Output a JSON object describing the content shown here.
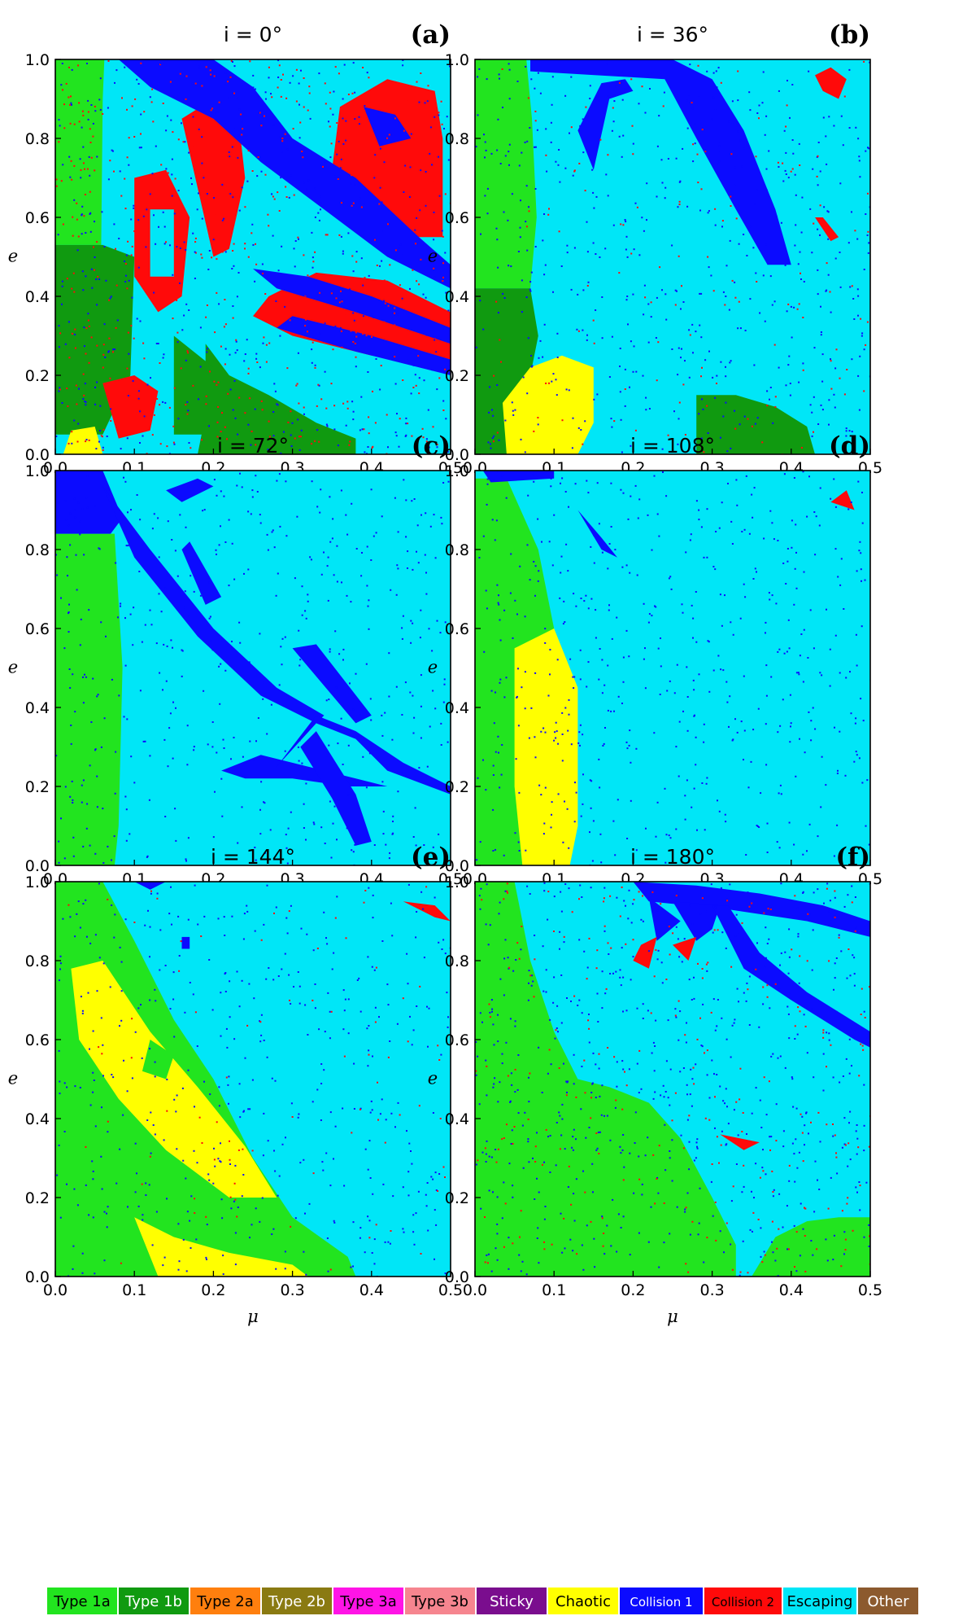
{
  "chart_data": {
    "type": "heatmap",
    "panels": [
      {
        "tag": "(a)",
        "title": "i = 0°",
        "xlabel": "μ",
        "ylabel": "e",
        "xlim": [
          0,
          0.5
        ],
        "ylim": [
          0,
          1
        ]
      },
      {
        "tag": "(b)",
        "title": "i = 36°",
        "xlabel": "μ",
        "ylabel": "e",
        "xlim": [
          0,
          0.5
        ],
        "ylim": [
          0,
          1
        ]
      },
      {
        "tag": "(c)",
        "title": "i = 72°",
        "xlabel": "μ",
        "ylabel": "e",
        "xlim": [
          0,
          0.5
        ],
        "ylim": [
          0,
          1
        ]
      },
      {
        "tag": "(d)",
        "title": "i = 108°",
        "xlabel": "μ",
        "ylabel": "e",
        "xlim": [
          0,
          0.5
        ],
        "ylim": [
          0,
          1
        ]
      },
      {
        "tag": "(e)",
        "title": "i = 144°",
        "xlabel": "μ",
        "ylabel": "e",
        "xlim": [
          0,
          0.5
        ],
        "ylim": [
          0,
          1
        ]
      },
      {
        "tag": "(f)",
        "title": "i = 180°",
        "xlabel": "μ",
        "ylabel": "e",
        "xlim": [
          0,
          0.5
        ],
        "ylim": [
          0,
          1
        ]
      }
    ],
    "x_ticks": [
      "0.0",
      "0.1",
      "0.2",
      "0.3",
      "0.4",
      "0.5"
    ],
    "y_ticks": [
      "0.0",
      "0.2",
      "0.4",
      "0.6",
      "0.8",
      "1.0"
    ],
    "legend": [
      {
        "label": "Type 1a",
        "color": "#22e41f",
        "text_color": "#000000"
      },
      {
        "label": "Type 1b",
        "color": "#109a10",
        "text_color": "#ffffff"
      },
      {
        "label": "Type 2a",
        "color": "#ff7f0e",
        "text_color": "#000000"
      },
      {
        "label": "Type 2b",
        "color": "#8a7a12",
        "text_color": "#ffffff"
      },
      {
        "label": "Type 3a",
        "color": "#ff14e6",
        "text_color": "#000000"
      },
      {
        "label": "Type 3b",
        "color": "#f6858f",
        "text_color": "#000000"
      },
      {
        "label": "Sticky",
        "color": "#7a0d8e",
        "text_color": "#ffffff"
      },
      {
        "label": "Chaotic",
        "color": "#ffff00",
        "text_color": "#000000"
      },
      {
        "label": "Collision 1",
        "color": "#0b0bff",
        "text_color": "#ffffff"
      },
      {
        "label": "Collision 2",
        "color": "#ff0a0a",
        "text_color": "#000000"
      },
      {
        "label": "Escaping",
        "color": "#00e6f7",
        "text_color": "#000000"
      },
      {
        "label": "Other",
        "color": "#8c5a2e",
        "text_color": "#ffffff"
      }
    ]
  }
}
